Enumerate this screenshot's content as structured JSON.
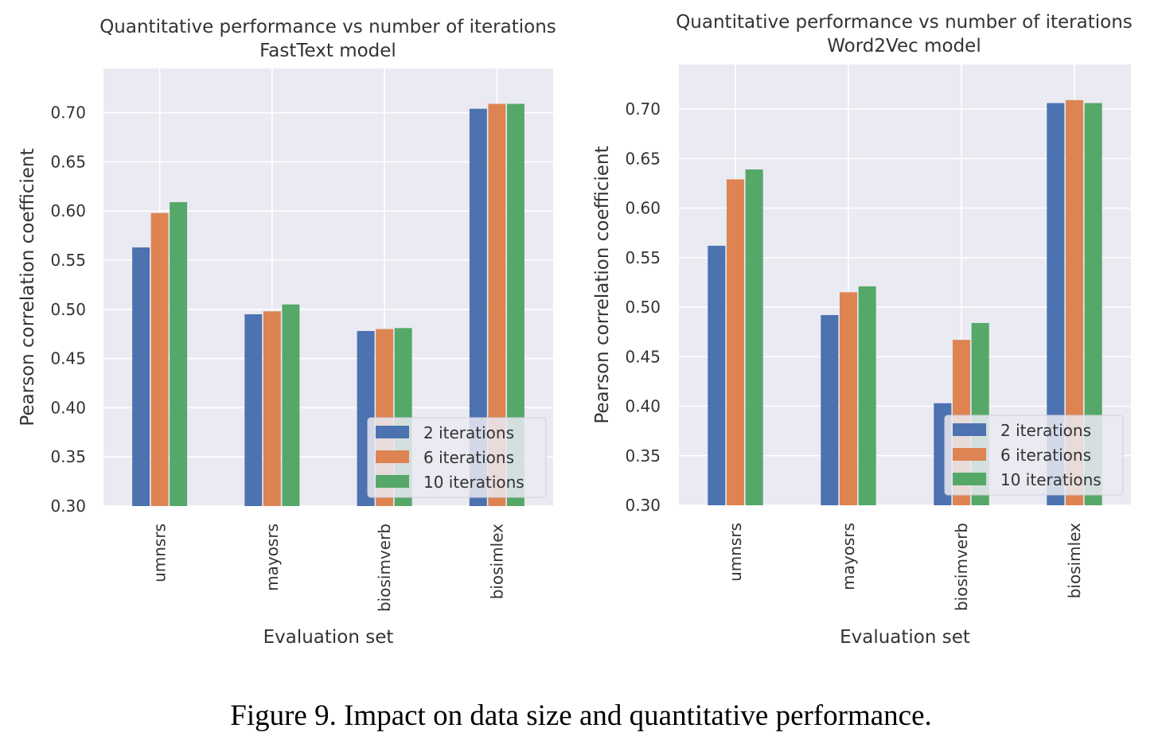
{
  "caption": "Figure 9. Impact on data size and quantitative performance.",
  "colors": {
    "series": [
      "#4c72b0",
      "#dd8452",
      "#55a868"
    ],
    "plot_bg": "#eaeaf2",
    "grid": "#ffffff"
  },
  "chart_data": [
    {
      "type": "bar",
      "title": "Quantitative performance vs number of iterations",
      "subtitle": "FastText model",
      "xlabel": "Evaluation set",
      "ylabel": "Pearson correlation coefficient",
      "categories": [
        "umnsrs",
        "mayosrs",
        "biosimverb",
        "biosimlex"
      ],
      "ylim": [
        0.3,
        0.745
      ],
      "yticks": [
        0.3,
        0.35,
        0.4,
        0.45,
        0.5,
        0.55,
        0.6,
        0.65,
        0.7
      ],
      "ytick_labels": [
        "0.30",
        "0.35",
        "0.40",
        "0.45",
        "0.50",
        "0.55",
        "0.60",
        "0.65",
        "0.70"
      ],
      "grid": true,
      "legend_position": "bottom-right",
      "series": [
        {
          "name": "2 iterations",
          "values": [
            0.563,
            0.495,
            0.478,
            0.704
          ]
        },
        {
          "name": "6 iterations",
          "values": [
            0.598,
            0.498,
            0.48,
            0.709
          ]
        },
        {
          "name": "10 iterations",
          "values": [
            0.609,
            0.505,
            0.481,
            0.709
          ]
        }
      ]
    },
    {
      "type": "bar",
      "title": "Quantitative performance vs number of iterations",
      "subtitle": "Word2Vec model",
      "xlabel": "Evaluation set",
      "ylabel": "Pearson correlation coefficient",
      "categories": [
        "umnsrs",
        "mayosrs",
        "biosimverb",
        "biosimlex"
      ],
      "ylim": [
        0.3,
        0.745
      ],
      "yticks": [
        0.3,
        0.35,
        0.4,
        0.45,
        0.5,
        0.55,
        0.6,
        0.65,
        0.7
      ],
      "ytick_labels": [
        "0.30",
        "0.35",
        "0.40",
        "0.45",
        "0.50",
        "0.55",
        "0.60",
        "0.65",
        "0.70"
      ],
      "grid": true,
      "legend_position": "bottom-right",
      "series": [
        {
          "name": "2 iterations",
          "values": [
            0.562,
            0.492,
            0.403,
            0.706
          ]
        },
        {
          "name": "6 iterations",
          "values": [
            0.629,
            0.515,
            0.467,
            0.709
          ]
        },
        {
          "name": "10 iterations",
          "values": [
            0.639,
            0.521,
            0.484,
            0.706
          ]
        }
      ]
    }
  ]
}
